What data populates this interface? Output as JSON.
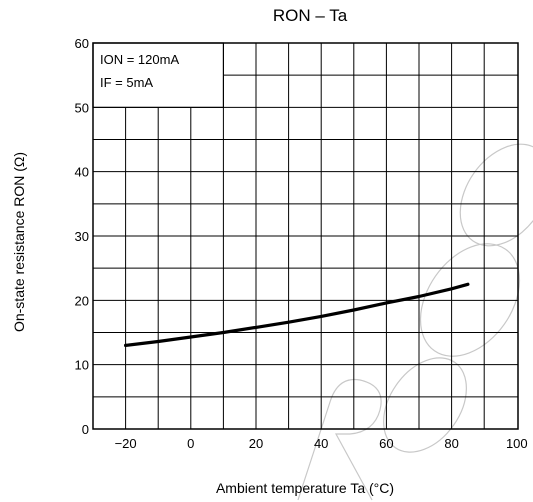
{
  "chart_data": {
    "type": "line",
    "title": "RON – Ta",
    "xlabel": "Ambient temperature   Ta    (°C)",
    "ylabel": "On-state resistance   RON    (Ω)",
    "xlim": [
      -30,
      100
    ],
    "ylim": [
      0,
      60
    ],
    "x_ticks": [
      -20,
      0,
      20,
      40,
      60,
      80,
      100
    ],
    "x_tick_labels": [
      "−20",
      "0",
      "20",
      "40",
      "60",
      "80",
      "100"
    ],
    "y_ticks": [
      0,
      10,
      20,
      30,
      40,
      50,
      60
    ],
    "y_tick_labels": [
      "0",
      "10",
      "20",
      "30",
      "40",
      "50",
      "60"
    ],
    "grid": true,
    "conditions": [
      "ION = 120mA",
      "IF = 5mA"
    ],
    "series": [
      {
        "x": [
          -20,
          -10,
          0,
          10,
          20,
          30,
          40,
          50,
          60,
          70,
          80,
          85
        ],
        "y": [
          13.0,
          13.6,
          14.3,
          15.0,
          15.8,
          16.6,
          17.5,
          18.5,
          19.6,
          20.6,
          21.8,
          22.5
        ]
      }
    ],
    "colors": {
      "line": "#000000",
      "grid": "#000000",
      "watermark": "#c8c8c8"
    }
  }
}
